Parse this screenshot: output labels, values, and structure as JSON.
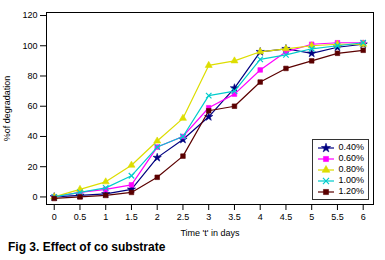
{
  "chart_data": {
    "type": "line",
    "caption": "Fig 3. Effect of co substrate",
    "xlabel": "Time 't' in days",
    "ylabel": "%of degradation",
    "x": [
      0,
      0.5,
      1,
      1.5,
      2,
      2.5,
      3,
      3.5,
      4,
      4.5,
      5,
      5.5,
      6
    ],
    "series": [
      {
        "name": "0.40%",
        "color": "#000080",
        "marker": "star",
        "values": [
          0,
          1,
          2,
          5,
          26,
          38,
          53,
          72,
          96,
          98,
          95,
          99,
          101
        ]
      },
      {
        "name": "0.60%",
        "color": "#FF00FF",
        "marker": "square",
        "values": [
          0,
          3,
          5,
          8,
          33,
          40,
          59,
          68,
          84,
          96,
          101,
          102,
          102
        ]
      },
      {
        "name": "0.80%",
        "color": "#DDDD00",
        "marker": "triangle",
        "values": [
          0,
          5,
          10,
          21,
          37,
          52,
          87,
          90,
          96,
          98,
          100,
          101,
          101
        ]
      },
      {
        "name": "1.00%",
        "color": "#00CCCC",
        "marker": "x",
        "values": [
          0,
          3,
          6,
          14,
          33,
          40,
          67,
          70,
          91,
          94,
          98,
          100,
          102
        ]
      },
      {
        "name": "1.20%",
        "color": "#5B0000",
        "marker": "square",
        "values": [
          -1,
          0,
          1,
          3,
          13,
          27,
          57,
          60,
          76,
          85,
          90,
          95,
          97
        ]
      }
    ],
    "xlim": [
      -0.15,
      6.2
    ],
    "ylim": [
      -5,
      122
    ],
    "xticks": [
      0,
      0.5,
      1,
      1.5,
      2,
      2.5,
      3,
      3.5,
      4,
      4.5,
      5,
      5.5,
      6
    ],
    "yticks": [
      0,
      20,
      40,
      60,
      80,
      100,
      120
    ],
    "legend": "lower right"
  }
}
